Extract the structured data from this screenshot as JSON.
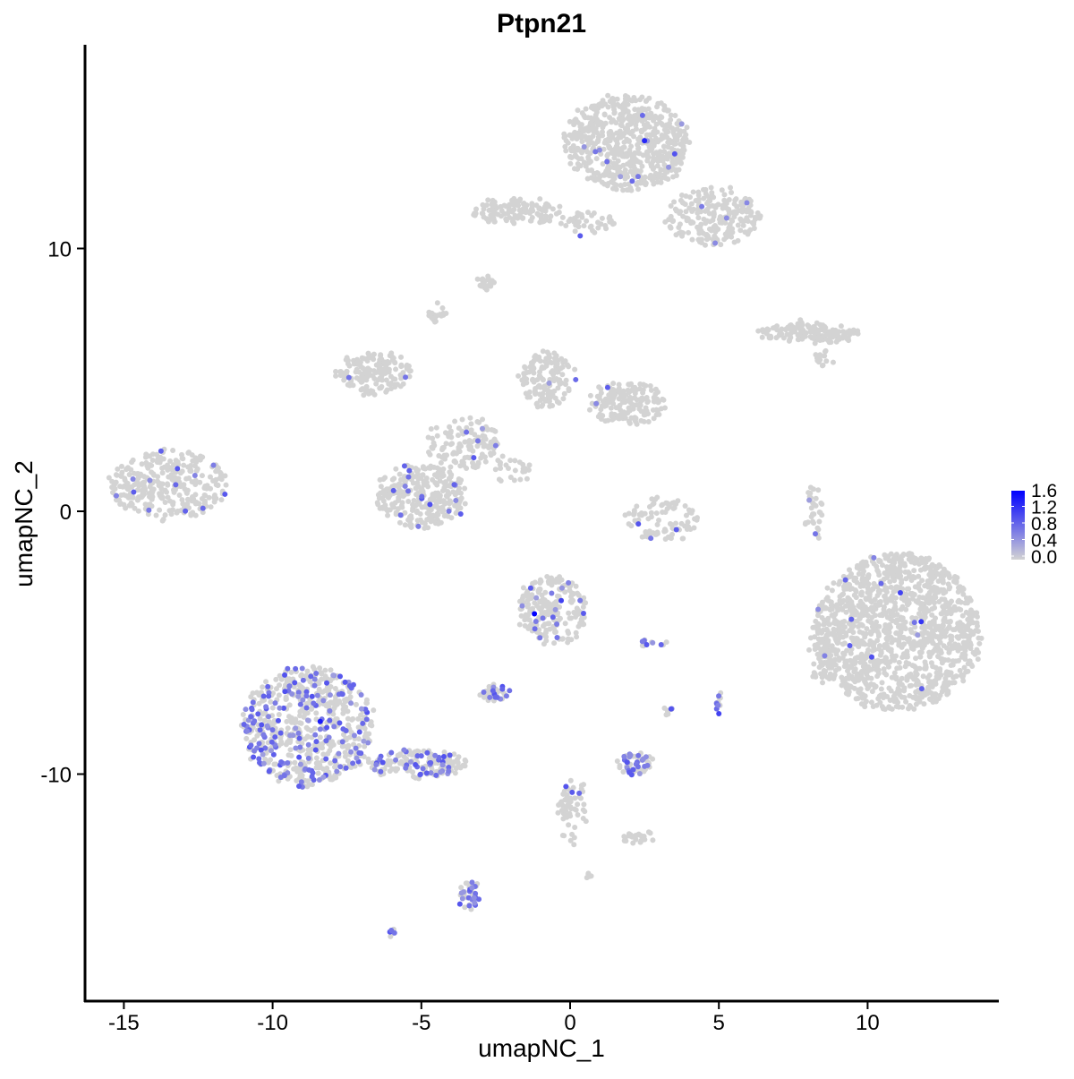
{
  "chart_data": {
    "type": "scatter",
    "title": "Ptpn21",
    "xlabel": "umapNC_1",
    "ylabel": "umapNC_2",
    "xlim": [
      -16.3,
      14.4
    ],
    "ylim": [
      -18.6,
      17.8
    ],
    "x_ticks": [
      -15,
      -10,
      -5,
      0,
      5,
      10
    ],
    "x_tick_labels": [
      "-15",
      "-10",
      "-5",
      "0",
      "5",
      "10"
    ],
    "y_ticks": [
      -10,
      0,
      10
    ],
    "y_tick_labels": [
      "-10",
      "0",
      "10"
    ],
    "grid": false,
    "color_scale": {
      "low": "#d3d3d3",
      "high": "#0000ff",
      "range": [
        0,
        1.6
      ],
      "ticks": [
        "0.0",
        "0.4",
        "0.8",
        "1.2",
        "1.6"
      ],
      "legend_placement": "right"
    },
    "clusters": [
      {
        "x": 1.9,
        "y": 14.0,
        "rx": 2.1,
        "ry": 1.8,
        "n": 650,
        "expr_frac": 0.02
      },
      {
        "x": 4.8,
        "y": 11.2,
        "rx": 1.6,
        "ry": 1.1,
        "n": 220,
        "expr_frac": 0.01
      },
      {
        "x": -1.8,
        "y": 11.4,
        "rx": 1.6,
        "ry": 0.5,
        "n": 120,
        "expr_frac": 0.0
      },
      {
        "x": 0.6,
        "y": 11.0,
        "rx": 0.9,
        "ry": 0.4,
        "n": 40,
        "expr_frac": 0.02
      },
      {
        "x": -2.8,
        "y": 8.7,
        "rx": 0.3,
        "ry": 0.2,
        "n": 20,
        "expr_frac": 0.0
      },
      {
        "x": -4.5,
        "y": 7.5,
        "rx": 0.3,
        "ry": 0.3,
        "n": 20,
        "expr_frac": 0.0
      },
      {
        "x": 8.0,
        "y": 6.8,
        "rx": 1.7,
        "ry": 0.35,
        "n": 160,
        "expr_frac": 0.0
      },
      {
        "x": 8.6,
        "y": 5.8,
        "rx": 0.4,
        "ry": 0.3,
        "n": 15,
        "expr_frac": 0.0
      },
      {
        "x": -13.5,
        "y": 1.0,
        "rx": 2.0,
        "ry": 1.3,
        "n": 320,
        "expr_frac": 0.04
      },
      {
        "x": -6.6,
        "y": 5.3,
        "rx": 1.3,
        "ry": 0.8,
        "n": 160,
        "expr_frac": 0.02
      },
      {
        "x": -3.6,
        "y": 2.6,
        "rx": 1.2,
        "ry": 1.0,
        "n": 130,
        "expr_frac": 0.03
      },
      {
        "x": -5.0,
        "y": 0.6,
        "rx": 1.5,
        "ry": 1.2,
        "n": 300,
        "expr_frac": 0.03
      },
      {
        "x": -0.8,
        "y": 5.0,
        "rx": 0.9,
        "ry": 1.1,
        "n": 140,
        "expr_frac": 0.02
      },
      {
        "x": 1.9,
        "y": 4.1,
        "rx": 1.3,
        "ry": 0.8,
        "n": 170,
        "expr_frac": 0.02
      },
      {
        "x": -1.9,
        "y": 1.6,
        "rx": 0.8,
        "ry": 0.6,
        "n": 25,
        "expr_frac": 0.1
      },
      {
        "x": 3.1,
        "y": -0.3,
        "rx": 1.2,
        "ry": 0.8,
        "n": 90,
        "expr_frac": 0.02
      },
      {
        "x": 8.2,
        "y": 0.0,
        "rx": 0.3,
        "ry": 1.1,
        "n": 35,
        "expr_frac": 0.05
      },
      {
        "x": 11.0,
        "y": -4.6,
        "rx": 2.8,
        "ry": 3.0,
        "n": 1300,
        "expr_frac": 0.008
      },
      {
        "x": 8.6,
        "y": -5.4,
        "rx": 0.6,
        "ry": 1.2,
        "n": 60,
        "expr_frac": 0.0
      },
      {
        "x": -0.6,
        "y": -3.8,
        "rx": 1.2,
        "ry": 1.3,
        "n": 220,
        "expr_frac": 0.08
      },
      {
        "x": 2.8,
        "y": -5.0,
        "rx": 0.5,
        "ry": 0.15,
        "n": 12,
        "expr_frac": 0.2
      },
      {
        "x": -8.8,
        "y": -8.2,
        "rx": 2.2,
        "ry": 2.3,
        "n": 650,
        "expr_frac": 0.25
      },
      {
        "x": -5.2,
        "y": -9.6,
        "rx": 1.8,
        "ry": 0.5,
        "n": 170,
        "expr_frac": 0.2
      },
      {
        "x": -2.5,
        "y": -6.9,
        "rx": 0.5,
        "ry": 0.3,
        "n": 45,
        "expr_frac": 0.4
      },
      {
        "x": 2.2,
        "y": -9.6,
        "rx": 0.6,
        "ry": 0.4,
        "n": 55,
        "expr_frac": 0.35
      },
      {
        "x": 0.1,
        "y": -11.4,
        "rx": 0.5,
        "ry": 1.2,
        "n": 60,
        "expr_frac": 0.05
      },
      {
        "x": 2.3,
        "y": -12.4,
        "rx": 0.6,
        "ry": 0.2,
        "n": 22,
        "expr_frac": 0.05
      },
      {
        "x": -3.4,
        "y": -14.6,
        "rx": 0.3,
        "ry": 0.6,
        "n": 45,
        "expr_frac": 0.4
      },
      {
        "x": -6.0,
        "y": -16.0,
        "rx": 0.1,
        "ry": 0.1,
        "n": 6,
        "expr_frac": 0.5
      },
      {
        "x": 5.0,
        "y": -7.3,
        "rx": 0.1,
        "ry": 0.4,
        "n": 12,
        "expr_frac": 0.5
      },
      {
        "x": 3.3,
        "y": -7.6,
        "rx": 0.1,
        "ry": 0.2,
        "n": 8,
        "expr_frac": 0.3
      },
      {
        "x": 0.6,
        "y": -13.9,
        "rx": 0.1,
        "ry": 0.1,
        "n": 5,
        "expr_frac": 0.0
      }
    ],
    "highlighted_points": [
      {
        "x": -1.2,
        "y": -3.9,
        "value": 1.6
      },
      {
        "x": -8.4,
        "y": -8.0,
        "value": 1.4
      },
      {
        "x": 2.5,
        "y": 14.1,
        "value": 1.3
      },
      {
        "x": 11.8,
        "y": -4.2,
        "value": 1.2
      },
      {
        "x": 11.1,
        "y": -3.1,
        "value": 1.1
      },
      {
        "x": -0.3,
        "y": -3.4,
        "value": 1.1
      },
      {
        "x": 5.0,
        "y": -7.7,
        "value": 1.1
      }
    ]
  }
}
